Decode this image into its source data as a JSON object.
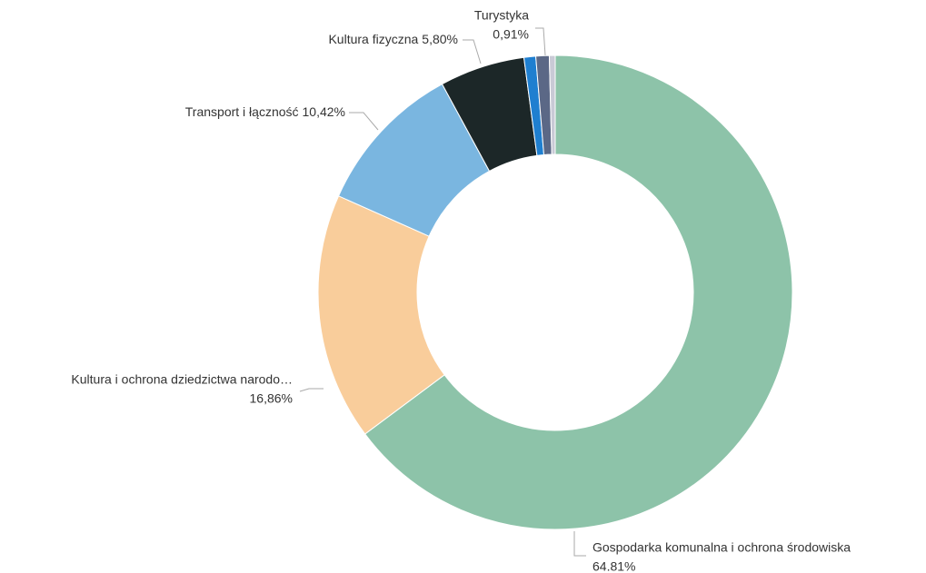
{
  "chart_data": {
    "type": "donut",
    "categories": [
      "Gospodarka komunalna i ochrona środowiska",
      "Kultura i ochrona dziedzictwa narodo…",
      "Transport i łączność",
      "Kultura fizyczna",
      null,
      "Turystyka",
      null
    ],
    "values": [
      64.81,
      16.86,
      10.42,
      5.8,
      0.8,
      0.91,
      0.4
    ],
    "value_labels": [
      "64.81%",
      "16,86%",
      "10,42%",
      "5,80%",
      null,
      "0,91%",
      null
    ],
    "colors": [
      "#8dc3a9",
      "#f9cd9b",
      "#7ab6e0",
      "#1c2728",
      "#1f7fd0",
      "#5b6886",
      "#c9cad6"
    ]
  }
}
